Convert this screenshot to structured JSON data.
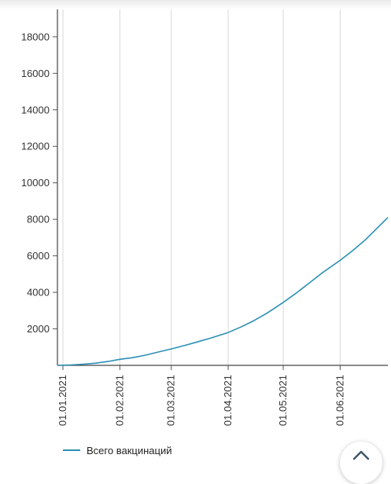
{
  "chart_data": {
    "type": "line",
    "title": "",
    "xlabel": "",
    "ylabel": "",
    "ylim": [
      0,
      19500
    ],
    "xlim": [
      "2020-12-29",
      "2021-06-27"
    ],
    "x_ticks": [
      "01.01.2021",
      "01.02.2021",
      "01.03.2021",
      "01.04.2021",
      "01.05.2021",
      "01.06.2021"
    ],
    "x_tick_dates": [
      "2021-01-01",
      "2021-02-01",
      "2021-03-01",
      "2021-04-01",
      "2021-05-01",
      "2021-06-01"
    ],
    "y_ticks": [
      2000,
      4000,
      6000,
      8000,
      10000,
      12000,
      14000,
      16000,
      18000
    ],
    "grid": "vertical",
    "legend_position": "bottom-left",
    "series": [
      {
        "name": "Всего вакцинаций",
        "color": "#2b8fb5",
        "x": [
          "2020-12-29",
          "2021-01-05",
          "2021-01-12",
          "2021-01-19",
          "2021-01-26",
          "2021-02-01",
          "2021-02-08",
          "2021-02-15",
          "2021-02-22",
          "2021-03-01",
          "2021-03-08",
          "2021-03-15",
          "2021-03-22",
          "2021-04-01",
          "2021-04-08",
          "2021-04-15",
          "2021-04-22",
          "2021-05-01",
          "2021-05-08",
          "2021-05-15",
          "2021-05-22",
          "2021-06-01",
          "2021-06-08",
          "2021-06-15",
          "2021-06-22",
          "2021-06-27"
        ],
        "values": [
          0,
          20,
          60,
          120,
          220,
          330,
          420,
          560,
          730,
          900,
          1080,
          1280,
          1480,
          1800,
          2100,
          2450,
          2850,
          3450,
          3950,
          4500,
          5050,
          5750,
          6300,
          6900,
          7600,
          8100
        ]
      }
    ]
  },
  "legend": {
    "label": "Всего вакцинаций"
  },
  "scroll_top": {
    "icon": "chevron-up-icon"
  }
}
